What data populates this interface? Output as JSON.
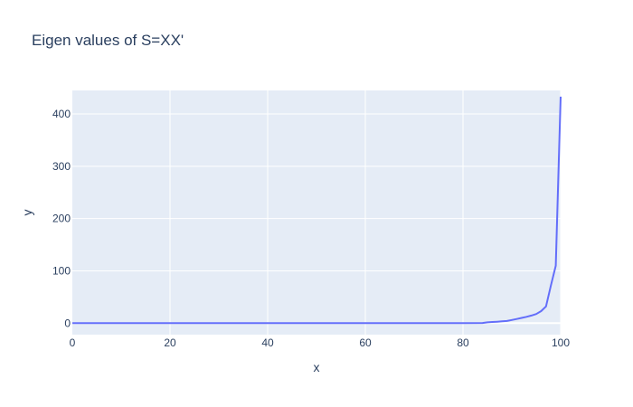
{
  "chart_data": {
    "type": "line",
    "title": "Eigen values of S=XX'",
    "xlabel": "x",
    "ylabel": "y",
    "xlim": [
      0,
      100
    ],
    "ylim": [
      -22,
      445
    ],
    "x_ticks": [
      0,
      20,
      40,
      60,
      80,
      100
    ],
    "y_ticks": [
      0,
      100,
      200,
      300,
      400
    ],
    "grid": true,
    "colors": {
      "line": "#636efa",
      "plot_bg": "#e5ecf6",
      "grid": "#ffffff",
      "text": "#2a3f5f"
    },
    "series": [
      {
        "x": [
          0,
          10,
          20,
          30,
          40,
          50,
          60,
          70,
          80,
          84,
          85,
          86,
          87,
          88,
          89,
          90,
          91,
          92,
          93,
          94,
          95,
          96,
          97,
          98,
          99,
          100
        ],
        "values": [
          0,
          0,
          0,
          0,
          0,
          0,
          0,
          0,
          0,
          0.3,
          1.5,
          2.2,
          2.8,
          3.5,
          4.2,
          6,
          8,
          10,
          12,
          14.5,
          17.5,
          23,
          32,
          72,
          110,
          433
        ]
      }
    ]
  }
}
